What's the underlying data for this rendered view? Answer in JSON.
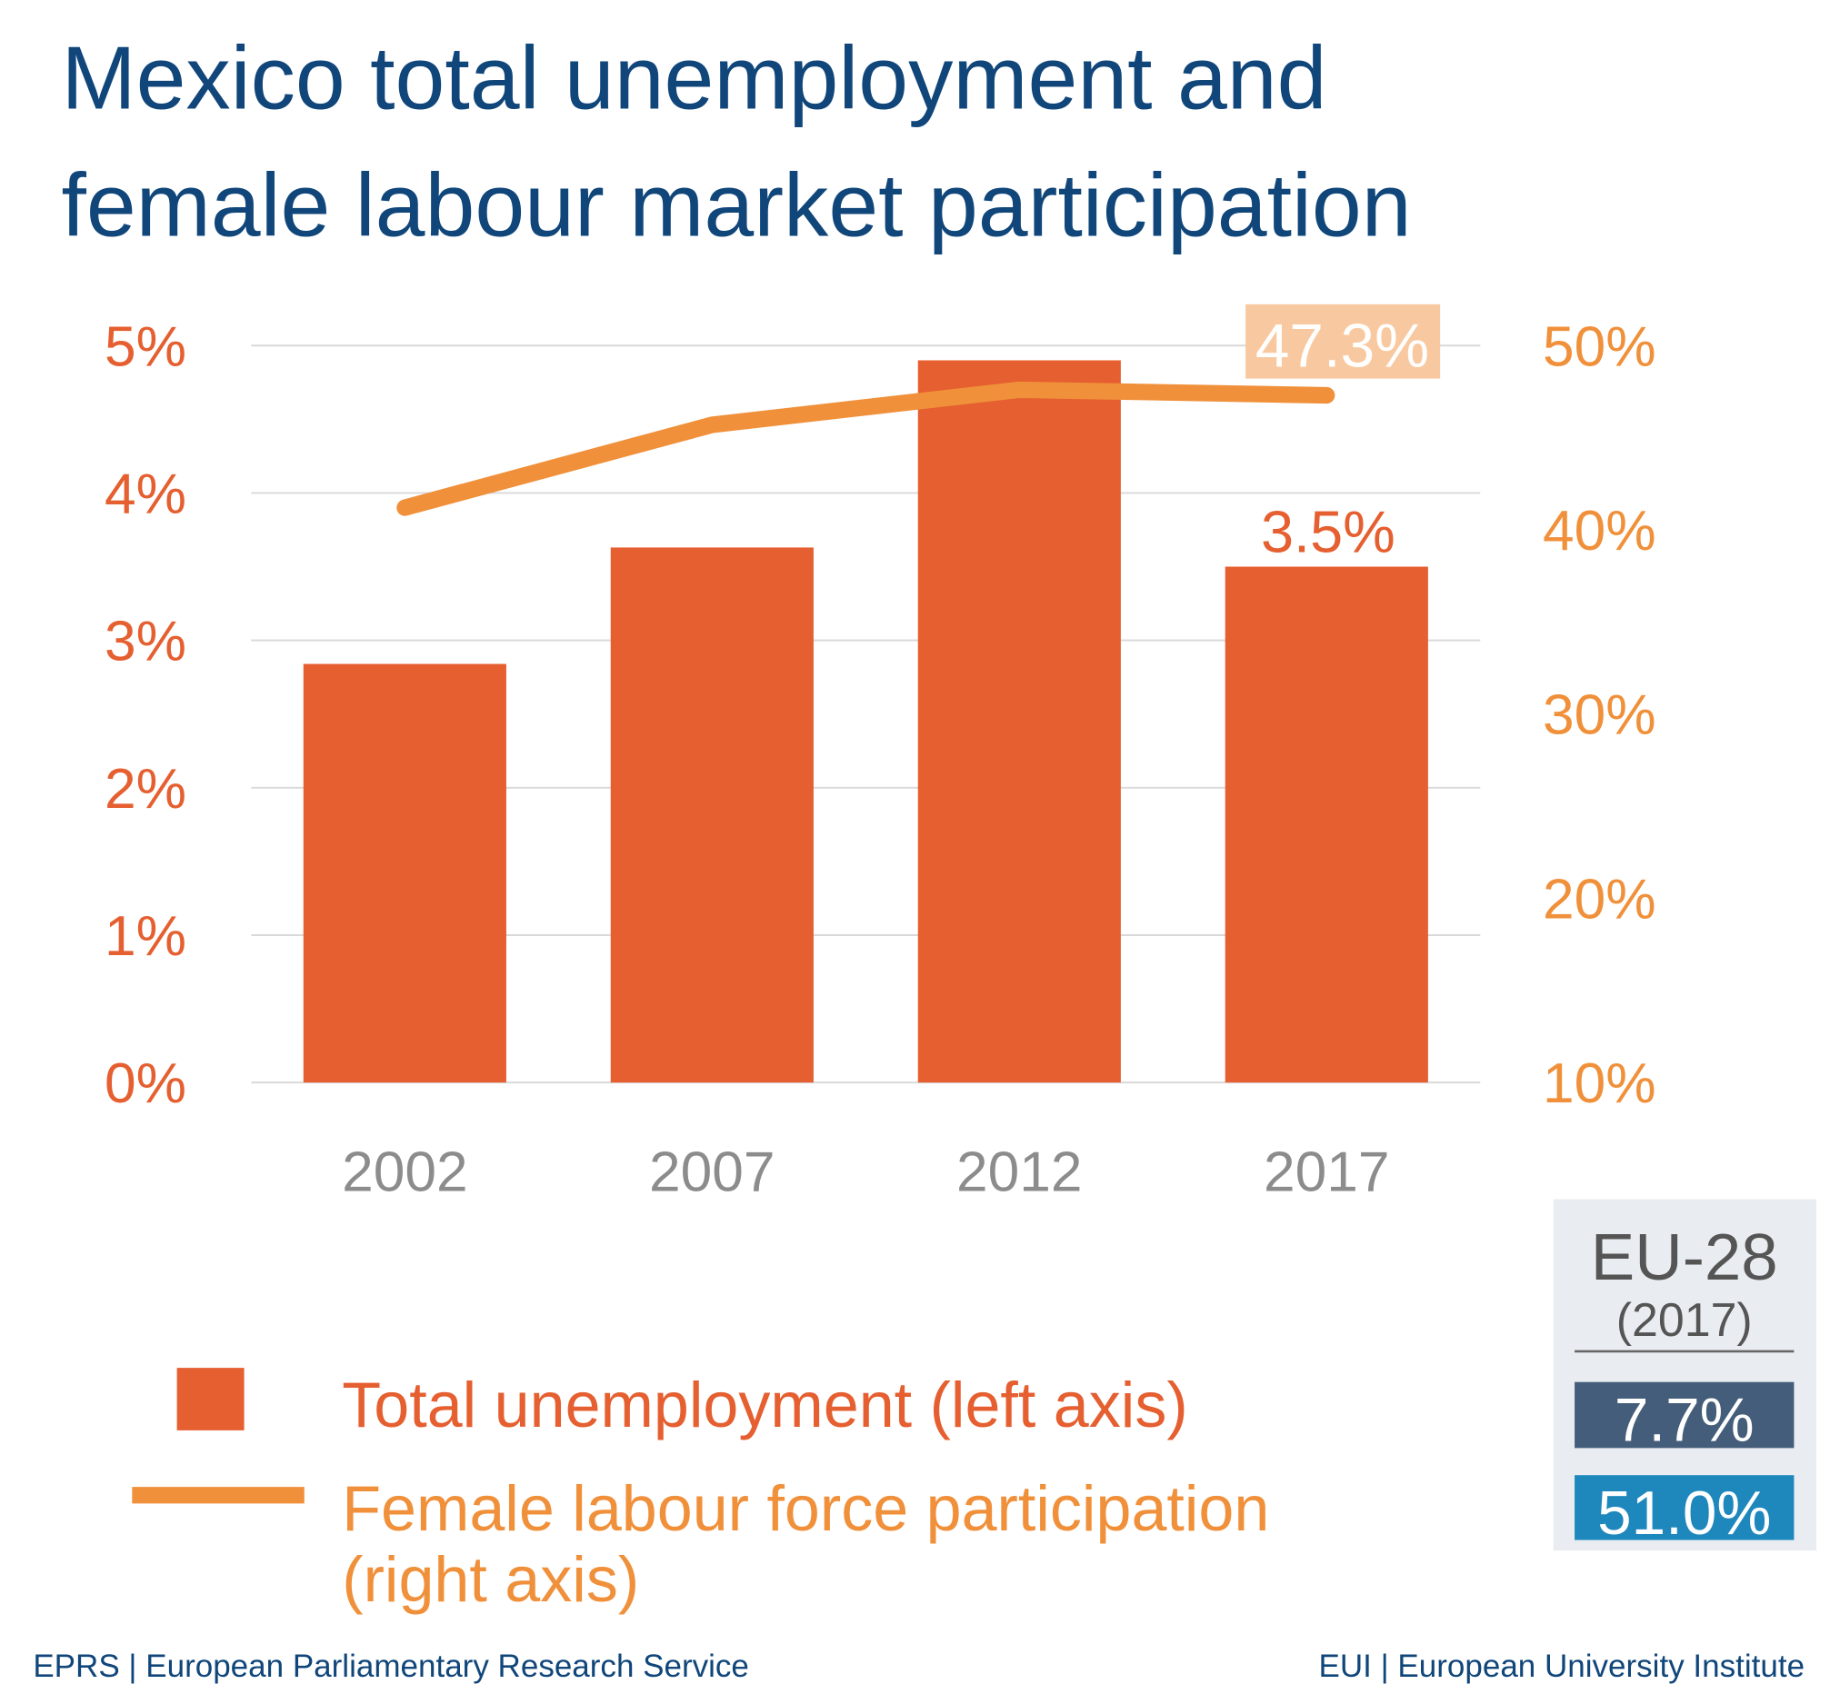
{
  "chart_data": {
    "type": "bar+line",
    "title": "Mexico total unemployment and female labour market participation",
    "title_lines": [
      "Mexico total unemployment and",
      "female labour market participation"
    ],
    "categories": [
      "2002",
      "2007",
      "2012",
      "2017"
    ],
    "left_axis": {
      "ylim": [
        0,
        5
      ],
      "ticks": [
        "0%",
        "1%",
        "2%",
        "3%",
        "4%",
        "5%"
      ],
      "tick_values": [
        0,
        1,
        2,
        3,
        4,
        5
      ]
    },
    "right_axis": {
      "ylim": [
        10,
        50
      ],
      "ticks": [
        "10%",
        "20%",
        "30%",
        "40%",
        "50%"
      ],
      "tick_values": [
        10,
        20,
        30,
        40,
        50
      ]
    },
    "grid": true,
    "series": [
      {
        "name": "Total unemployment (left axis)",
        "type": "bar",
        "axis": "left",
        "values": [
          2.84,
          3.63,
          4.9,
          3.5
        ],
        "color": "#e55f30"
      },
      {
        "name": "Female labour force participation (right axis)",
        "type": "line",
        "axis": "right",
        "values": [
          41.2,
          45.7,
          47.6,
          47.3
        ],
        "color": "#f0903a"
      }
    ],
    "data_labels": {
      "bar_last": "3.5%",
      "line_last": "47.3%"
    },
    "legend": {
      "placement": "bottom-left",
      "items": [
        "Total unemployment (left axis)",
        "Female labour force participation",
        "(right axis)"
      ]
    }
  },
  "eu_box": {
    "title": "EU-28",
    "year": "(2017)",
    "unemployment": "7.7%",
    "participation": "51.0%",
    "colors": {
      "background": "#e9edf1",
      "unemployment": "#445d7a",
      "participation": "#1e87bc"
    }
  },
  "footer": {
    "left": "EPRS | European Parliamentary Research Service",
    "right": "EUI | European University Institute"
  }
}
